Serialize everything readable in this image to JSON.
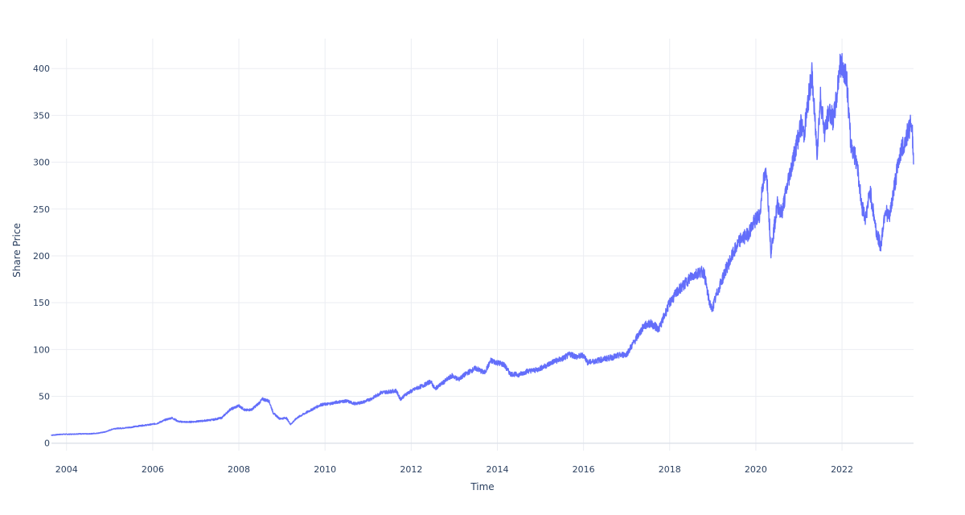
{
  "chart_data": {
    "type": "line",
    "title": "",
    "xlabel": "Time",
    "ylabel": "Share Price",
    "xlim": [
      2003.65,
      2023.66
    ],
    "ylim": [
      -8,
      432
    ],
    "x_ticks": [
      2004,
      2006,
      2008,
      2010,
      2012,
      2014,
      2016,
      2018,
      2020,
      2022
    ],
    "x_tick_labels": [
      "2004",
      "2006",
      "2008",
      "2010",
      "2012",
      "2014",
      "2016",
      "2018",
      "2020",
      "2022"
    ],
    "y_ticks": [
      0,
      50,
      100,
      150,
      200,
      250,
      300,
      350,
      400
    ],
    "y_tick_labels": [
      "0",
      "50",
      "100",
      "150",
      "200",
      "250",
      "300",
      "350",
      "400"
    ],
    "grid": true,
    "legend": "none",
    "colors": {
      "series": "#636efa",
      "grid": "#ebedf2",
      "text": "#2a3f5f"
    },
    "series": [
      {
        "x": [
          2003.65,
          2003.9,
          2004.1,
          2004.3,
          2004.5,
          2004.7,
          2004.9,
          2005.1,
          2005.3,
          2005.5,
          2005.7,
          2005.9,
          2006.1,
          2006.3,
          2006.45,
          2006.6,
          2006.8,
          2007.0,
          2007.2,
          2007.4,
          2007.6,
          2007.8,
          2008.0,
          2008.15,
          2008.3,
          2008.45,
          2008.55,
          2008.7,
          2008.8,
          2008.95,
          2009.1,
          2009.2,
          2009.35,
          2009.5,
          2009.7,
          2009.9,
          2010.1,
          2010.3,
          2010.5,
          2010.7,
          2010.9,
          2011.1,
          2011.3,
          2011.5,
          2011.65,
          2011.75,
          2011.9,
          2012.1,
          2012.3,
          2012.45,
          2012.55,
          2012.75,
          2012.95,
          2013.1,
          2013.3,
          2013.5,
          2013.7,
          2013.85,
          2014.0,
          2014.15,
          2014.3,
          2014.5,
          2014.7,
          2014.9,
          2015.1,
          2015.3,
          2015.5,
          2015.7,
          2015.85,
          2016.0,
          2016.1,
          2016.3,
          2016.5,
          2016.7,
          2016.85,
          2017.0,
          2017.2,
          2017.4,
          2017.55,
          2017.75,
          2017.85,
          2018.0,
          2018.2,
          2018.35,
          2018.5,
          2018.7,
          2018.8,
          2018.9,
          2018.98,
          2019.1,
          2019.3,
          2019.5,
          2019.65,
          2019.8,
          2019.95,
          2020.1,
          2020.15,
          2020.25,
          2020.35,
          2020.5,
          2020.6,
          2020.75,
          2020.85,
          2020.95,
          2021.05,
          2021.12,
          2021.2,
          2021.3,
          2021.42,
          2021.5,
          2021.6,
          2021.7,
          2021.8,
          2021.88,
          2021.95,
          2022.0,
          2022.1,
          2022.2,
          2022.35,
          2022.45,
          2022.55,
          2022.65,
          2022.75,
          2022.8,
          2022.9,
          2023.0,
          2023.1,
          2023.2,
          2023.35,
          2023.45,
          2023.55,
          2023.62,
          2023.66
        ],
        "y": [
          8.5,
          9.5,
          9.5,
          10.0,
          9.8,
          10.5,
          12.0,
          15.5,
          16.0,
          17.0,
          18.5,
          19.5,
          21.0,
          25.0,
          27.0,
          23.0,
          22.5,
          23.0,
          24.0,
          25.0,
          27.0,
          36.0,
          40.0,
          35.0,
          36.0,
          42.0,
          47.0,
          45.0,
          32.0,
          26.0,
          27.0,
          20.0,
          27.0,
          31.0,
          36.0,
          41.0,
          42.0,
          44.0,
          45.0,
          42.0,
          44.0,
          48.0,
          54.0,
          55.0,
          56.0,
          47.0,
          53.0,
          58.0,
          62.0,
          66.0,
          58.0,
          65.0,
          72.0,
          68.0,
          75.0,
          80.0,
          75.0,
          88.0,
          86.0,
          84.0,
          74.0,
          73.0,
          77.0,
          78.0,
          82.0,
          87.0,
          90.0,
          95.0,
          92.0,
          94.0,
          86.0,
          88.0,
          90.0,
          92.0,
          94.0,
          95.0,
          110.0,
          125.0,
          128.0,
          122.0,
          133.0,
          150.0,
          163.0,
          170.0,
          178.0,
          183.0,
          182.0,
          155.0,
          142.0,
          160.0,
          185.0,
          205.0,
          218.0,
          222.0,
          235.0,
          245.0,
          275.0,
          290.0,
          205.0,
          255.0,
          245.0,
          280.0,
          300.0,
          320.0,
          340.0,
          330.0,
          360.0,
          395.0,
          310.0,
          370.0,
          330.0,
          355.0,
          345.0,
          370.0,
          405.0,
          402.0,
          395.0,
          320.0,
          300.0,
          255.0,
          240.0,
          270.0,
          240.0,
          225.0,
          210.0,
          250.0,
          240.0,
          270.0,
          310.0,
          320.0,
          335.0,
          345.0,
          298.0
        ]
      }
    ]
  }
}
